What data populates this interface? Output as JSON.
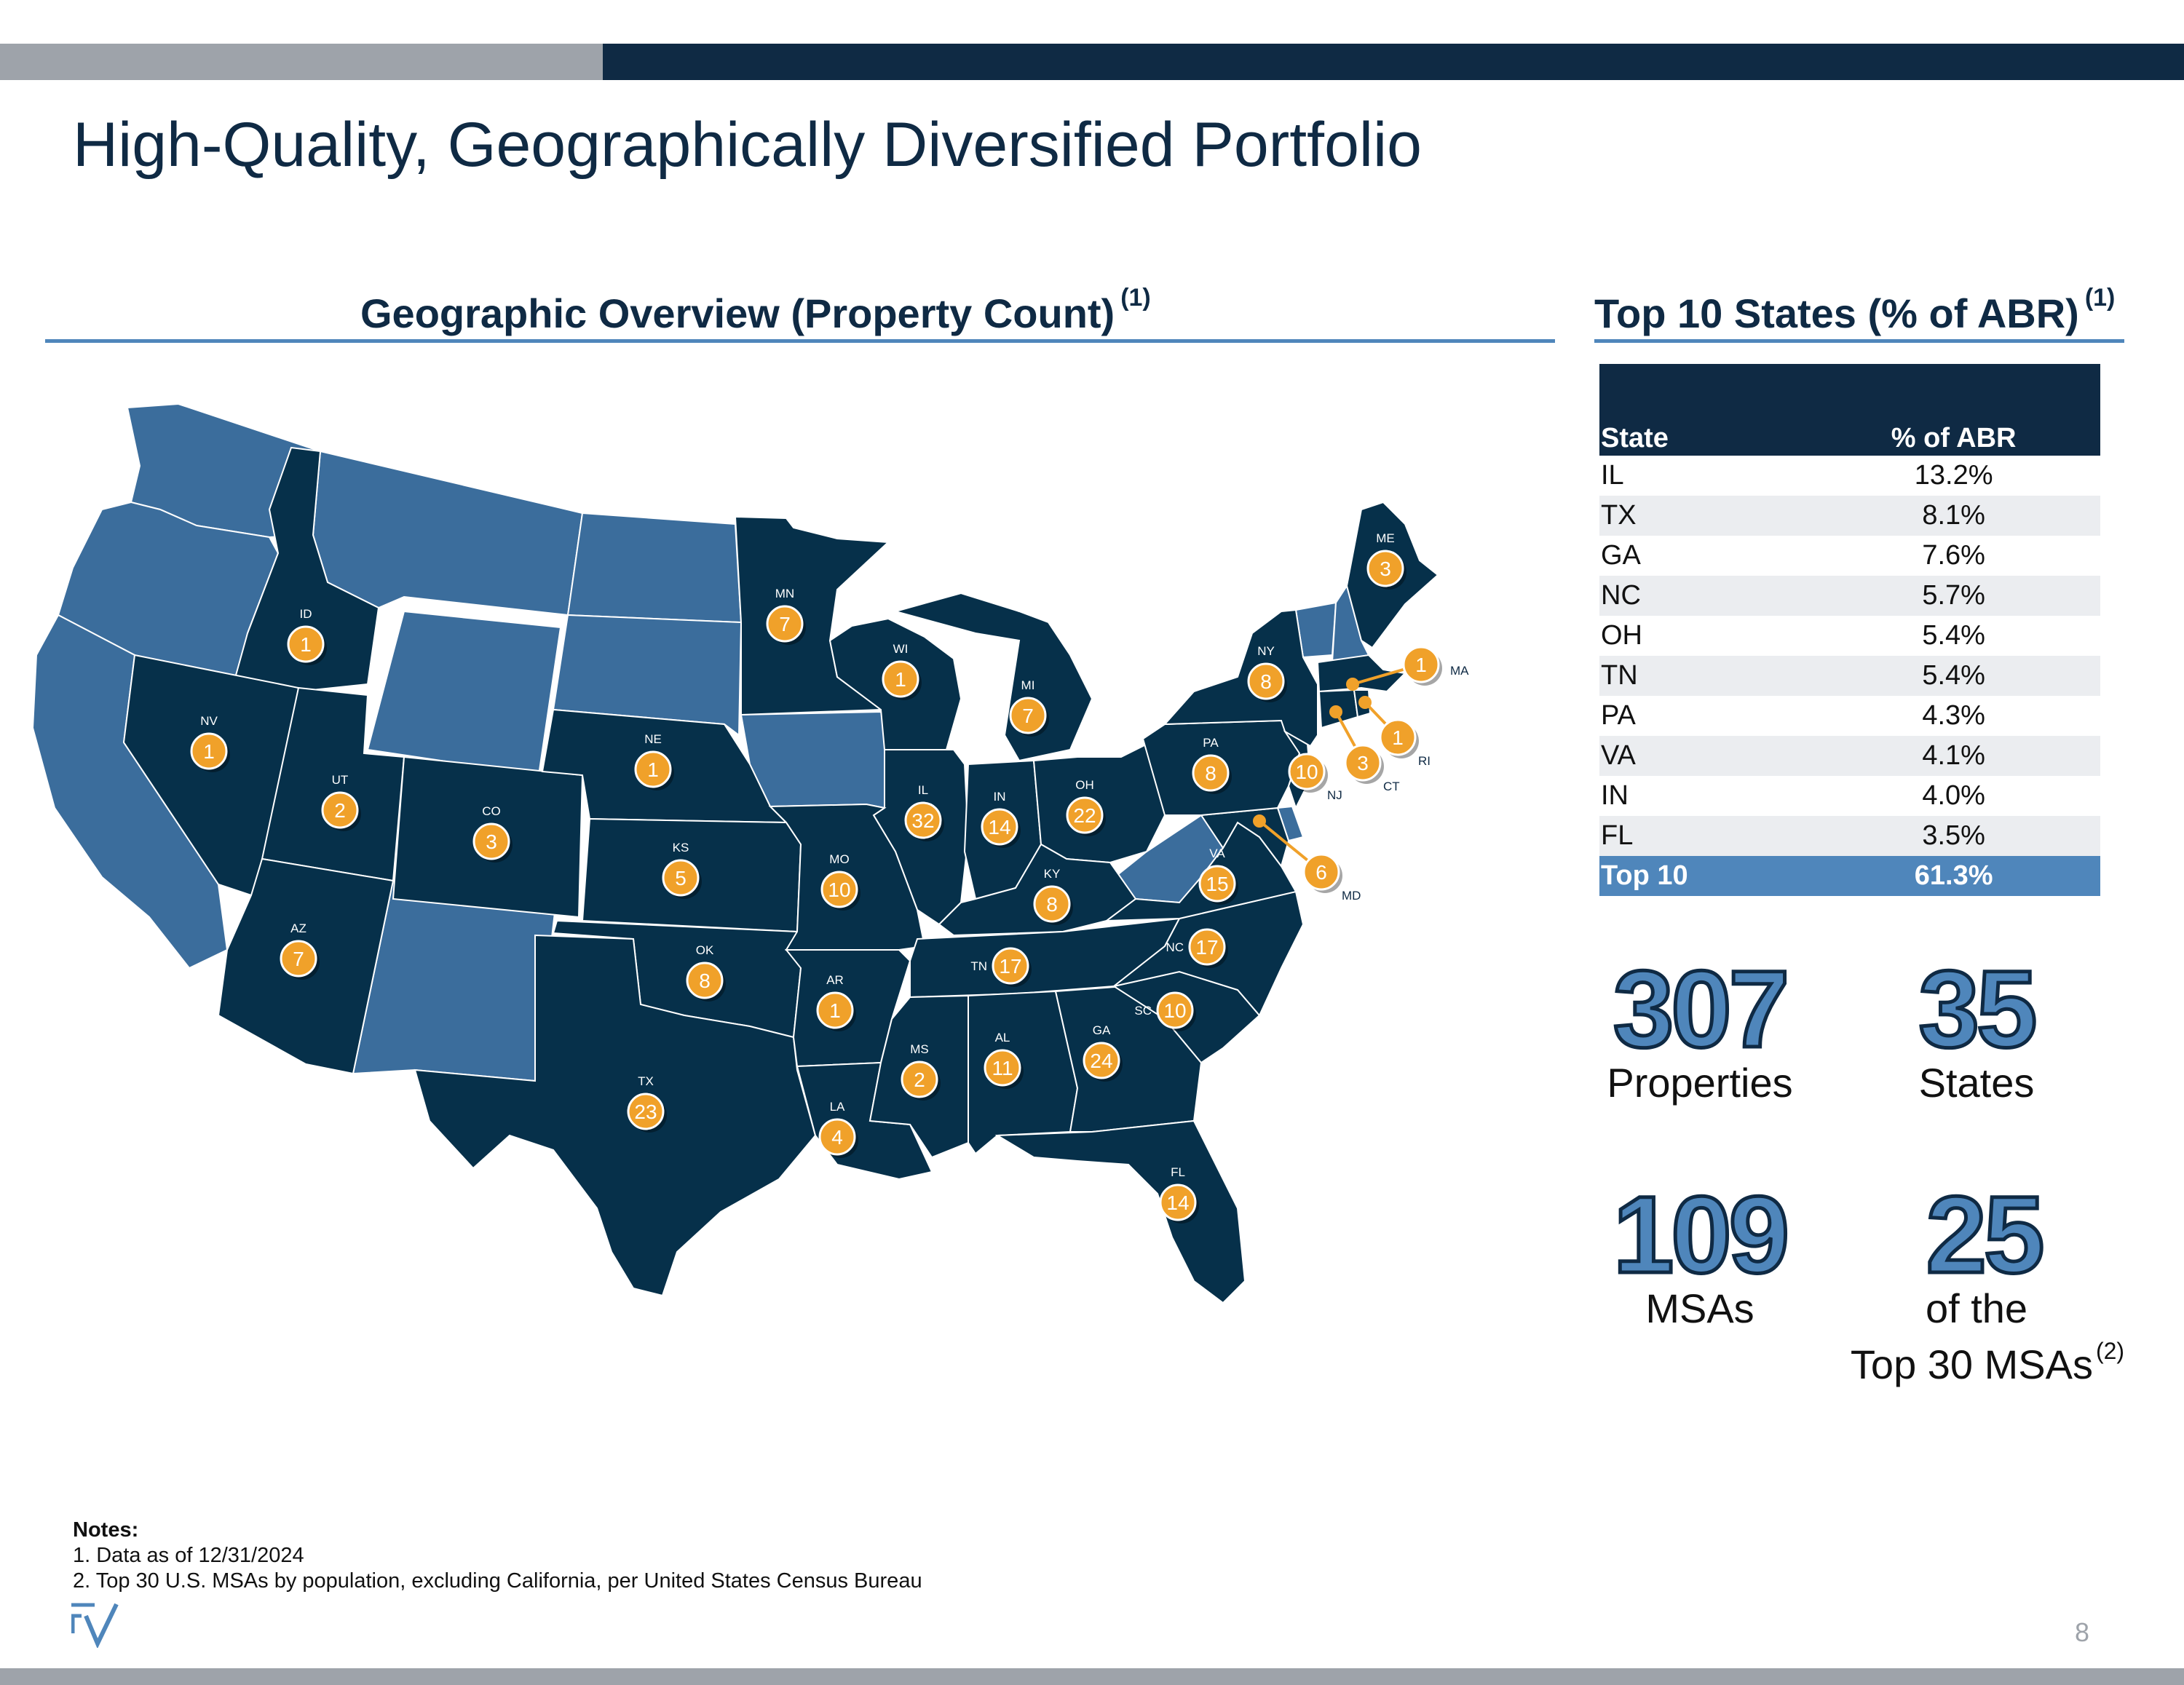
{
  "title": "High-Quality, Geographically Diversified Portfolio",
  "map_section": {
    "heading": "Geographic Overview (Property Count)",
    "footnote": "(1)"
  },
  "table_section": {
    "heading": "Top 10 States (% of ABR)",
    "footnote": "(1)"
  },
  "abr_table": {
    "col_state": "State",
    "col_pct": "% of ABR",
    "rows": [
      {
        "state": "IL",
        "pct": "13.2%"
      },
      {
        "state": "TX",
        "pct": "8.1%"
      },
      {
        "state": "GA",
        "pct": "7.6%"
      },
      {
        "state": "NC",
        "pct": "5.7%"
      },
      {
        "state": "OH",
        "pct": "5.4%"
      },
      {
        "state": "TN",
        "pct": "5.4%"
      },
      {
        "state": "PA",
        "pct": "4.3%"
      },
      {
        "state": "VA",
        "pct": "4.1%"
      },
      {
        "state": "IN",
        "pct": "4.0%"
      },
      {
        "state": "FL",
        "pct": "3.5%"
      }
    ],
    "total": {
      "state": "Top 10",
      "pct": "61.3%"
    }
  },
  "stats": {
    "properties": {
      "value": "307",
      "label": "Properties"
    },
    "states": {
      "value": "35",
      "label": "States"
    },
    "msas": {
      "value": "109",
      "label": "MSAs"
    },
    "top_msas": {
      "value": "25",
      "label_line1": "of the",
      "label_line2": "Top 30 MSAs",
      "footnote": "(2)"
    }
  },
  "map_markers": [
    {
      "state": "ID",
      "count": "1"
    },
    {
      "state": "NV",
      "count": "1"
    },
    {
      "state": "UT",
      "count": "2"
    },
    {
      "state": "CO",
      "count": "3"
    },
    {
      "state": "AZ",
      "count": "7"
    },
    {
      "state": "NE",
      "count": "1"
    },
    {
      "state": "KS",
      "count": "5"
    },
    {
      "state": "OK",
      "count": "8"
    },
    {
      "state": "TX",
      "count": "23"
    },
    {
      "state": "MN",
      "count": "7"
    },
    {
      "state": "MO",
      "count": "10"
    },
    {
      "state": "AR",
      "count": "1"
    },
    {
      "state": "LA",
      "count": "4"
    },
    {
      "state": "WI",
      "count": "1"
    },
    {
      "state": "IL",
      "count": "32"
    },
    {
      "state": "MI",
      "count": "7"
    },
    {
      "state": "IN",
      "count": "14"
    },
    {
      "state": "OH",
      "count": "22"
    },
    {
      "state": "KY",
      "count": "8"
    },
    {
      "state": "TN",
      "count": "17"
    },
    {
      "state": "MS",
      "count": "2"
    },
    {
      "state": "AL",
      "count": "11"
    },
    {
      "state": "GA",
      "count": "24"
    },
    {
      "state": "FL",
      "count": "14"
    },
    {
      "state": "SC",
      "count": "10"
    },
    {
      "state": "NC",
      "count": "17"
    },
    {
      "state": "VA",
      "count": "15"
    },
    {
      "state": "PA",
      "count": "8"
    },
    {
      "state": "NY",
      "count": "8"
    },
    {
      "state": "ME",
      "count": "3"
    },
    {
      "state": "MA",
      "count": "1"
    },
    {
      "state": "RI",
      "count": "1"
    },
    {
      "state": "CT",
      "count": "3"
    },
    {
      "state": "NJ",
      "count": "10"
    },
    {
      "state": "MD",
      "count": "6"
    }
  ],
  "colors": {
    "navy": "#0f2a44",
    "state_dark": "#06304a",
    "state_light": "#3b6d9c",
    "accent_blue": "#4f86bb",
    "marker": "#f0a12a",
    "gray": "#9ea3aa"
  },
  "notes": {
    "heading": "Notes:",
    "lines": [
      "1. Data as of 12/31/2024",
      "2. Top 30 U.S. MSAs by population, excluding California, per United States Census Bureau"
    ]
  },
  "page_number": "8"
}
